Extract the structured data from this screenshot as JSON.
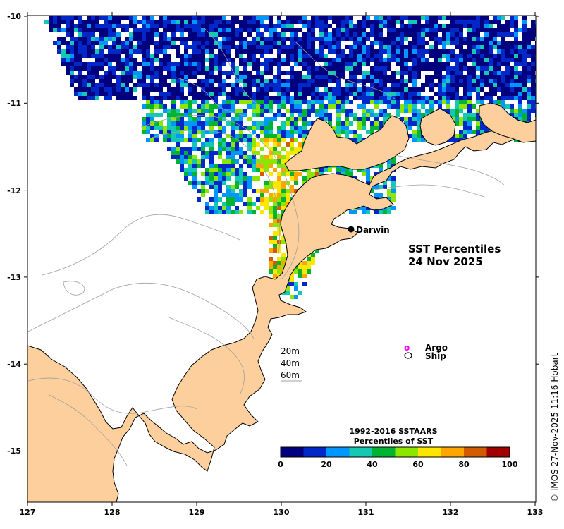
{
  "map": {
    "title_line1": "SST Percentiles",
    "title_line2": "24 Nov 2025",
    "city_label": "Darwin",
    "lon_ticks": [
      "127",
      "128",
      "129",
      "130",
      "131",
      "132",
      "133"
    ],
    "lat_ticks": [
      "-10",
      "-11",
      "-12",
      "-13",
      "-14",
      "-15"
    ],
    "land_color": "#fccf9d",
    "sea_color": "#ffffff",
    "contour_color": "#a0a0a0"
  },
  "legend": {
    "argo_label": "Argo",
    "ship_label": "Ship",
    "argo_symbol": "o",
    "argo_color": "#ff00ff"
  },
  "depths": [
    "20m",
    "40m",
    "60m"
  ],
  "colorbar": {
    "title_line1": "1992-2016 SSTAARS",
    "title_line2": "Percentiles of SST",
    "ticks": [
      "0",
      "20",
      "40",
      "60",
      "80",
      "100"
    ],
    "colors": [
      "#00007f",
      "#0028c8",
      "#0096ff",
      "#14c8b4",
      "#00b432",
      "#8ce600",
      "#ffe600",
      "#ffa500",
      "#d25a00",
      "#a00000"
    ]
  },
  "credit": "© IMOS 27-Nov-2025 11:16 Hobart"
}
